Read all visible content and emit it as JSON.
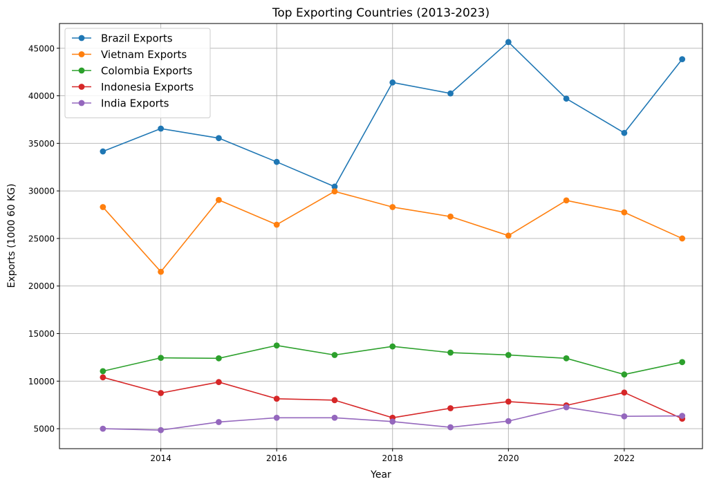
{
  "chart_data": {
    "type": "line",
    "title": "Top Exporting Countries (2013-2023)",
    "xlabel": "Year",
    "ylabel": "Exports (1000 60 KG)",
    "x": [
      2013,
      2014,
      2015,
      2016,
      2017,
      2018,
      2019,
      2020,
      2021,
      2022,
      2023
    ],
    "xlim": [
      2012.25,
      2023.35
    ],
    "ylim": [
      2900,
      47600
    ],
    "xticks": [
      "2014",
      "2016",
      "2018",
      "2020",
      "2022"
    ],
    "yticks": [
      "5000",
      "10000",
      "15000",
      "20000",
      "25000",
      "30000",
      "35000",
      "40000",
      "45000"
    ],
    "grid": true,
    "legend": "top-left",
    "series": [
      {
        "name": "Brazil Exports",
        "color": "#1f77b4",
        "values": [
          34150,
          36550,
          35550,
          33050,
          30450,
          41400,
          40250,
          45650,
          39700,
          36100,
          43850
        ]
      },
      {
        "name": "Vietnam Exports",
        "color": "#ff7f0e",
        "values": [
          28300,
          21500,
          29050,
          26450,
          29950,
          28300,
          27300,
          25300,
          29000,
          27750,
          25000
        ]
      },
      {
        "name": "Colombia Exports",
        "color": "#2ca02c",
        "values": [
          11050,
          12450,
          12400,
          13750,
          12750,
          13650,
          13000,
          12750,
          12400,
          10700,
          12000
        ]
      },
      {
        "name": "Indonesia Exports",
        "color": "#d62728",
        "values": [
          10400,
          8750,
          9900,
          8150,
          8000,
          6150,
          7150,
          7850,
          7450,
          8800,
          6050
        ]
      },
      {
        "name": "India Exports",
        "color": "#9467bd",
        "values": [
          5000,
          4850,
          5700,
          6150,
          6150,
          5750,
          5150,
          5800,
          7250,
          6300,
          6350
        ]
      }
    ]
  }
}
